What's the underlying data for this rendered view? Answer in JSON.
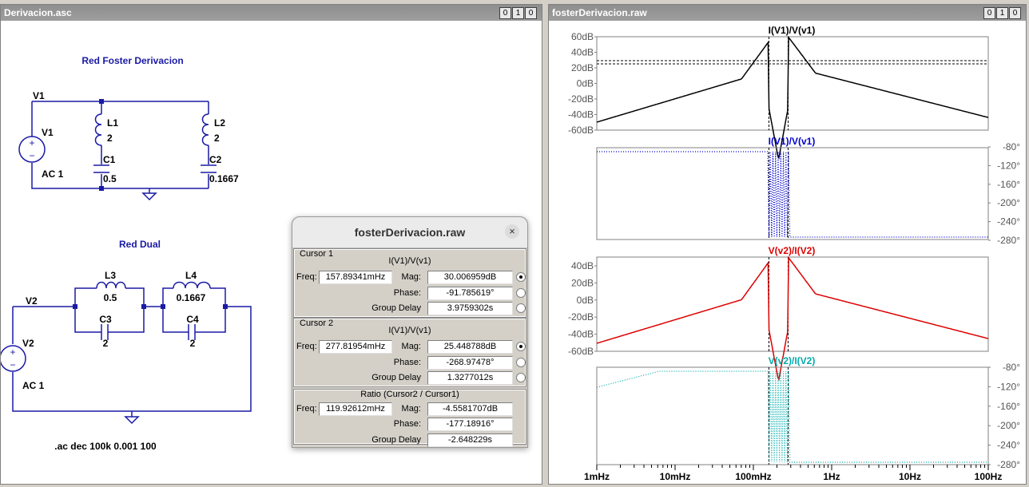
{
  "schematic_window": {
    "title": "Derivacion.asc",
    "buttons": [
      "0",
      "1",
      "0"
    ],
    "foster": {
      "title": "Red Foster Derivacion",
      "node": "V1",
      "source": {
        "name": "V1",
        "value": "AC 1"
      },
      "L1": {
        "name": "L1",
        "value": "2"
      },
      "C1": {
        "name": "C1",
        "value": "0.5"
      },
      "L2": {
        "name": "L2",
        "value": "2"
      },
      "C2": {
        "name": "C2",
        "value": "0.1667"
      }
    },
    "dual": {
      "title": "Red Dual",
      "node": "V2",
      "source": {
        "name": "V2",
        "value": "AC 1"
      },
      "L3": {
        "name": "L3",
        "value": "0.5"
      },
      "C3": {
        "name": "C3",
        "value": "2"
      },
      "L4": {
        "name": "L4",
        "value": "0.1667"
      },
      "C4": {
        "name": "C4",
        "value": "2"
      }
    },
    "directive": ".ac dec 100k 0.001 100"
  },
  "plot_window": {
    "title": "fosterDerivacion.raw",
    "buttons": [
      "0",
      "1",
      "0"
    ],
    "panes": [
      {
        "trace": "I(V1)/V(v1)",
        "color": "#000000",
        "ticks": [
          "60dB",
          "40dB",
          "20dB",
          "0dB",
          "-20dB",
          "-40dB",
          "-60dB"
        ],
        "side": "left"
      },
      {
        "trace": "I(V1)/V(v1)",
        "color": "#0000cc",
        "ticks": [
          "-80°",
          "-120°",
          "-160°",
          "-200°",
          "-240°",
          "-280°"
        ],
        "side": "right"
      },
      {
        "trace": "V(v2)/I(V2)",
        "color": "#dd0000",
        "ticks": [
          "40dB",
          "20dB",
          "0dB",
          "-20dB",
          "-40dB",
          "-60dB"
        ],
        "side": "left"
      },
      {
        "trace": "V(v2)/I(V2)",
        "color": "#00aaaa",
        "ticks": [
          "-80°",
          "-120°",
          "-160°",
          "-200°",
          "-240°",
          "-280°"
        ],
        "side": "right"
      }
    ],
    "x_ticks": [
      "1mHz",
      "10mHz",
      "100mHz",
      "1Hz",
      "10Hz",
      "100Hz"
    ]
  },
  "dialog": {
    "title": "fosterDerivacion.raw",
    "close_icon": "×",
    "cursor1": {
      "label": "Cursor 1",
      "trace": "I(V1)/V(v1)",
      "freq_label": "Freq:",
      "freq": "157.89341mHz",
      "mag_label": "Mag:",
      "mag": "30.006959dB",
      "phase_label": "Phase:",
      "phase": "-91.785619°",
      "gd_label": "Group Delay",
      "gd": "3.9759302s"
    },
    "cursor2": {
      "label": "Cursor 2",
      "trace": "I(V1)/V(v1)",
      "freq_label": "Freq:",
      "freq": "277.81954mHz",
      "mag_label": "Mag:",
      "mag": "25.448788dB",
      "phase_label": "Phase:",
      "phase": "-268.97478°",
      "gd_label": "Group Delay",
      "gd": "1.3277012s"
    },
    "ratio": {
      "label": "Ratio (Cursor2 / Cursor1)",
      "freq_label": "Freq:",
      "freq": "119.92612mHz",
      "mag_label": "Mag:",
      "mag": "-4.5581707dB",
      "phase_label": "Phase:",
      "phase": "-177.18916°",
      "gd_label": "Group Delay",
      "gd": "-2.648229s"
    }
  }
}
